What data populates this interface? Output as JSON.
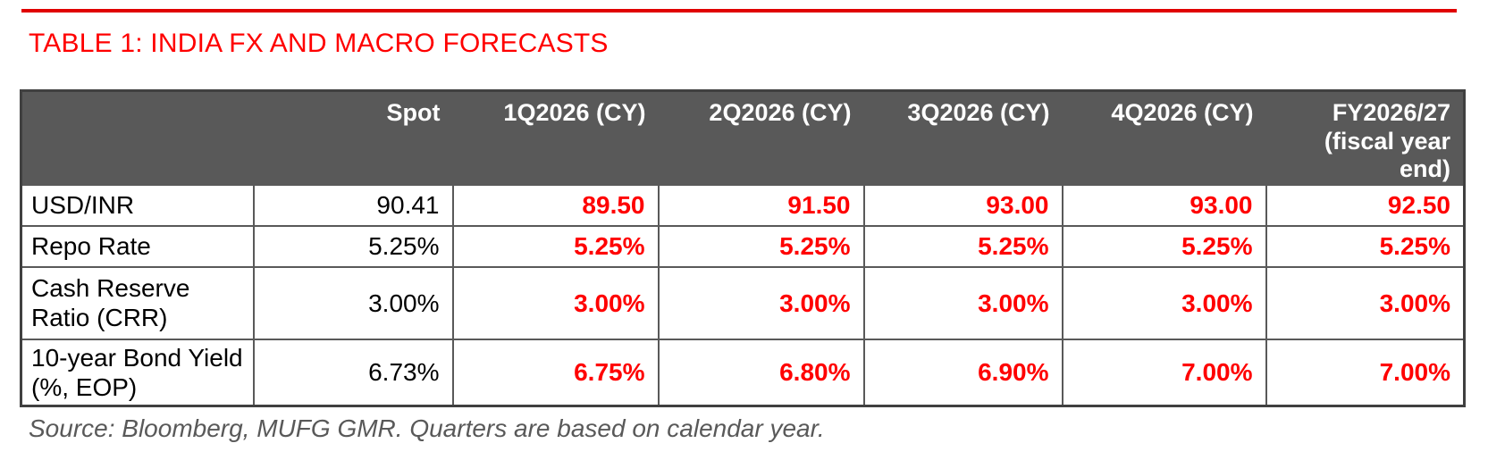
{
  "colors": {
    "accent_red": "#ff0000",
    "rule_red": "#e00000",
    "header_bg": "#595959",
    "grid": "#595959",
    "outer_border": "#404040",
    "source_gray": "#595959"
  },
  "title": "TABLE 1: INDIA FX AND MACRO FORECASTS",
  "table": {
    "columns": [
      "",
      "Spot",
      "1Q2026 (CY)",
      "2Q2026 (CY)",
      "3Q2026 (CY)",
      "4Q2026 (CY)",
      "FY2026/27 (fiscal year end)"
    ],
    "rows": [
      {
        "label": "USD/INR",
        "spot": "90.41",
        "forecasts": [
          "89.50",
          "91.50",
          "93.00",
          "93.00",
          "92.50"
        ]
      },
      {
        "label": "Repo Rate",
        "spot": "5.25%",
        "forecasts": [
          "5.25%",
          "5.25%",
          "5.25%",
          "5.25%",
          "5.25%"
        ]
      },
      {
        "label": "Cash Reserve Ratio (CRR)",
        "spot": "3.00%",
        "forecasts": [
          "3.00%",
          "3.00%",
          "3.00%",
          "3.00%",
          "3.00%"
        ]
      },
      {
        "label": "10-year Bond Yield (%, EOP)",
        "spot": "6.73%",
        "forecasts": [
          "6.75%",
          "6.80%",
          "6.90%",
          "7.00%",
          "7.00%"
        ]
      }
    ]
  },
  "source": "Source: Bloomberg, MUFG GMR. Quarters are based on calendar year."
}
